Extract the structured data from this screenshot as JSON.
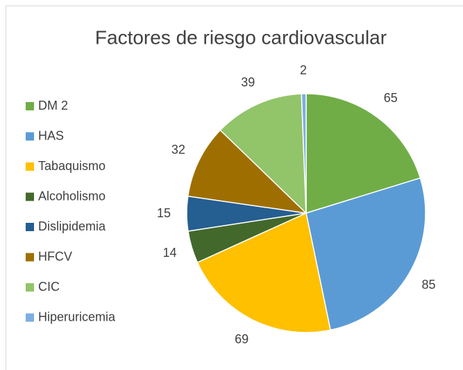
{
  "chart_data": {
    "type": "pie",
    "title": "Factores de riesgo cardiovascular",
    "categories": [
      "DM 2",
      "HAS",
      "Tabaquismo",
      "Alcoholismo",
      "Dislipidemia",
      "HFCV",
      "CIC",
      "Hiperuricemia"
    ],
    "values": [
      65,
      85,
      69,
      14,
      15,
      32,
      39,
      2
    ],
    "colors": [
      "#70ad47",
      "#5b9bd5",
      "#ffc000",
      "#43682b",
      "#255e91",
      "#9e6f00",
      "#92c46a",
      "#7eaee0"
    ],
    "legend": "left"
  }
}
